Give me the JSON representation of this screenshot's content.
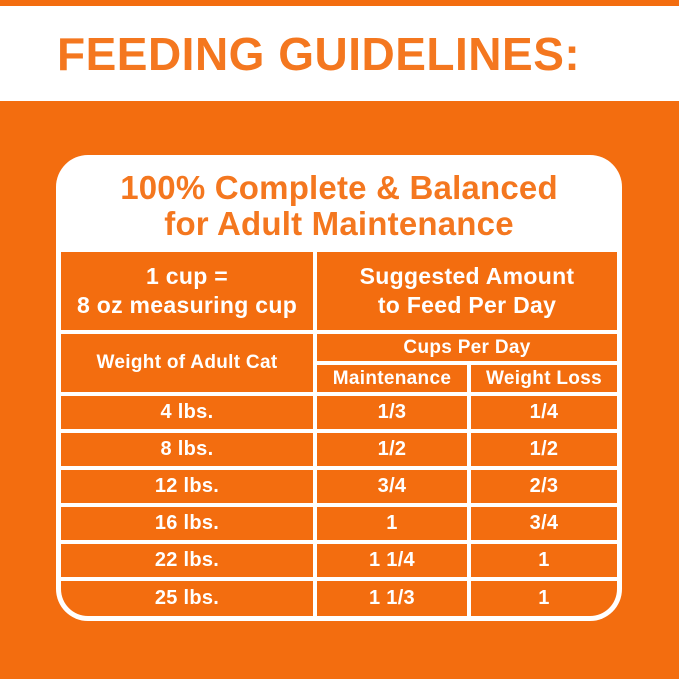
{
  "colors": {
    "orange_background": "#F36D0F",
    "orange_text": "#F4771F",
    "white": "#FFFFFF"
  },
  "header": {
    "title": "FEEDING GUIDELINES:"
  },
  "card": {
    "title_line1": "100% Complete & Balanced",
    "title_line2": "for Adult Maintenance",
    "cup_note_line1": "1 cup =",
    "cup_note_line2": "8 oz measuring cup",
    "suggested_line1": "Suggested Amount",
    "suggested_line2": "to Feed Per Day",
    "weight_header": "Weight of Adult Cat",
    "cups_per_day": "Cups Per Day",
    "maintenance_header": "Maintenance",
    "weight_loss_header": "Weight Loss",
    "rows": [
      {
        "weight": "4 lbs.",
        "maintenance": "1/3",
        "weight_loss": "1/4"
      },
      {
        "weight": "8 lbs.",
        "maintenance": "1/2",
        "weight_loss": "1/2"
      },
      {
        "weight": "12 lbs.",
        "maintenance": "3/4",
        "weight_loss": "2/3"
      },
      {
        "weight": "16 lbs.",
        "maintenance": "1",
        "weight_loss": "3/4"
      },
      {
        "weight": "22 lbs.",
        "maintenance": "1 1/4",
        "weight_loss": "1"
      },
      {
        "weight": "25 lbs.",
        "maintenance": "1 1/3",
        "weight_loss": "1"
      }
    ]
  }
}
